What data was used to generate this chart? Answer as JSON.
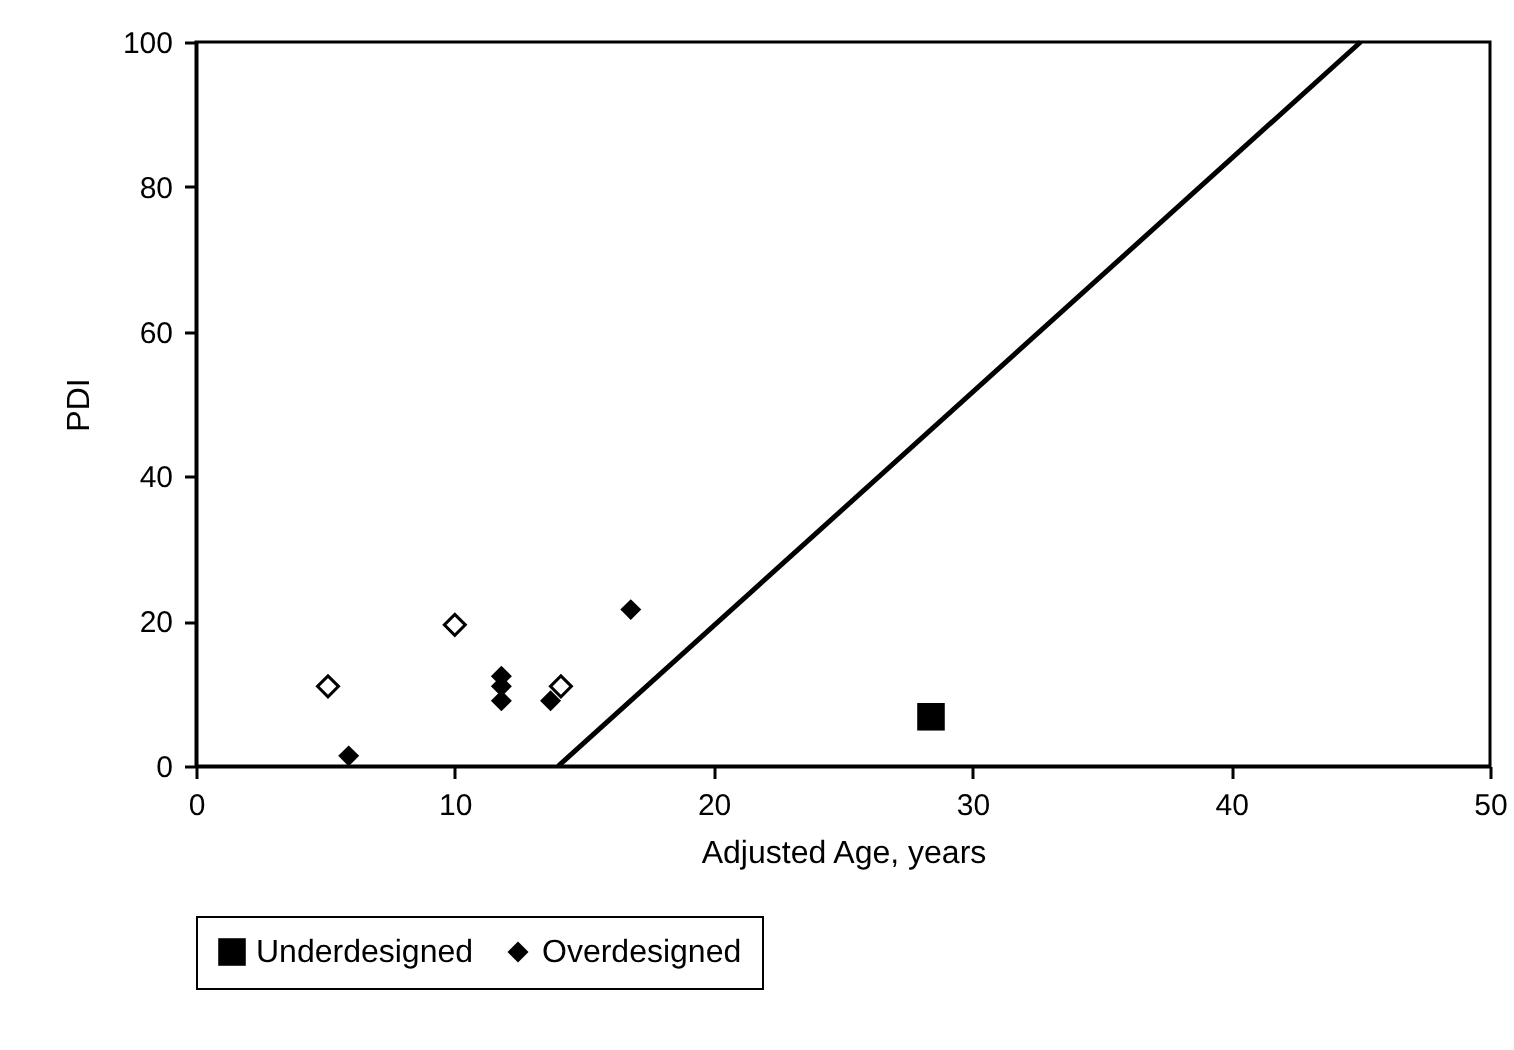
{
  "chart_data": {
    "type": "scatter",
    "xlabel": "Adjusted Age, years",
    "ylabel": "PDI",
    "xlim": [
      0,
      50
    ],
    "xticks": [
      0,
      10,
      20,
      30,
      40,
      50
    ],
    "ylim": [
      0,
      100
    ],
    "yticks": [
      0,
      20,
      40,
      60,
      80,
      100
    ],
    "grid": false,
    "legend": "bottom",
    "series": [
      {
        "name": "Underdesigned",
        "color": "#000000",
        "marker": "square",
        "x": [
          28.4
        ],
        "values": [
          6.8
        ]
      },
      {
        "name": "Overdesigned",
        "color": "#000000",
        "marker": "diamond",
        "x": [
          5.9,
          11.8,
          11.8,
          11.8,
          13.7,
          16.8
        ],
        "values": [
          1.4,
          12.4,
          11,
          9,
          9,
          21.6
        ]
      },
      {
        "color": "#ffffff",
        "marker": "diamond",
        "x": [
          5.1,
          10.0,
          14.1
        ],
        "values": [
          11,
          19.5,
          11
        ]
      },
      {
        "type": "line",
        "color": "#000000",
        "marker": "none",
        "x": [
          14,
          45
        ],
        "values": [
          0,
          100
        ]
      }
    ]
  }
}
